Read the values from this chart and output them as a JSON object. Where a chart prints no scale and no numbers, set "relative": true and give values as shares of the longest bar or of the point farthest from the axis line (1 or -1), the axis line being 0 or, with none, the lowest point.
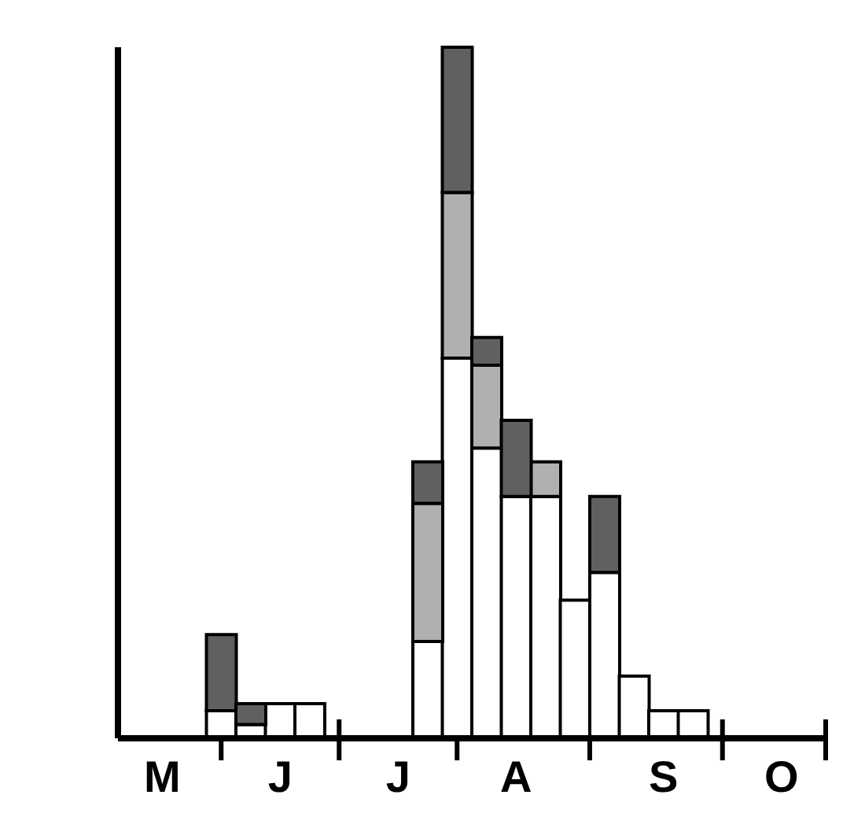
{
  "chart_data": {
    "type": "bar",
    "stacked": true,
    "relative": true,
    "categories": [
      null,
      "M",
      null,
      null,
      null,
      "J",
      null,
      null,
      null,
      "J",
      null,
      null,
      null,
      "A",
      null,
      null,
      null,
      null,
      "S",
      null,
      null,
      null,
      "O",
      null
    ],
    "series": [
      {
        "color": "#ffffff",
        "values": [
          null,
          null,
          null,
          0.04,
          0.02,
          0.05,
          0.05,
          null,
          null,
          null,
          0.14,
          0.55,
          0.42,
          0.35,
          0.35,
          0.2,
          0.24,
          0.09,
          0.04,
          0.04,
          null,
          null,
          null,
          null
        ]
      },
      {
        "color": "#b0b0b0",
        "values": [
          null,
          null,
          null,
          null,
          null,
          null,
          null,
          null,
          null,
          null,
          0.2,
          0.24,
          0.12,
          null,
          0.05,
          null,
          null,
          null,
          null,
          null,
          null,
          null,
          null,
          null
        ]
      },
      {
        "color": "#606060",
        "values": [
          null,
          null,
          null,
          0.11,
          0.03,
          null,
          null,
          null,
          null,
          null,
          0.06,
          0.21,
          0.04,
          0.11,
          null,
          null,
          0.11,
          null,
          null,
          null,
          null,
          null,
          null,
          null
        ]
      }
    ],
    "grid": false,
    "legend": false
  }
}
